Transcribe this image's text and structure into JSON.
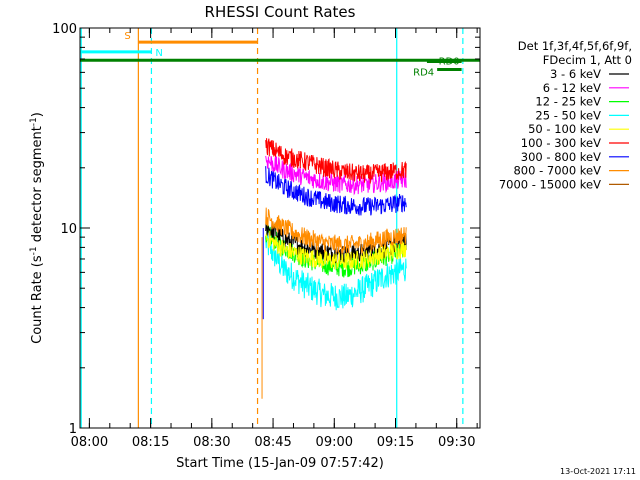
{
  "chart_data": {
    "type": "line",
    "title": "RHESSI Count Rates",
    "xlabel": "Start Time (15-Jan-09 07:57:42)",
    "ylabel_main": "Count Rate (s",
    "ylabel_sup1": "-1",
    "ylabel_mid": " detector segment",
    "ylabel_sup2": "-1",
    "ylabel_end": ")",
    "x_start": "07:57:42",
    "xlim_minutes": [
      0,
      98
    ],
    "ylim": [
      1,
      100
    ],
    "y_scale": "log",
    "x_ticks": [
      {
        "label": "08:00",
        "min": 2.3
      },
      {
        "label": "08:15",
        "min": 17.3
      },
      {
        "label": "08:30",
        "min": 32.3
      },
      {
        "label": "08:45",
        "min": 47.3
      },
      {
        "label": "09:00",
        "min": 62.3
      },
      {
        "label": "09:15",
        "min": 77.3
      },
      {
        "label": "09:30",
        "min": 92.3
      }
    ],
    "y_ticks": [
      {
        "label": "100",
        "value": 100
      },
      {
        "label": "10",
        "value": 10
      },
      {
        "label": "1",
        "value": 1
      }
    ],
    "legend": {
      "header1": "Det 1f,3f,4f,5f,6f,9f,",
      "header2": "FDecim 1, Att 0",
      "position": "right"
    },
    "series": [
      {
        "name": "3 - 6 keV",
        "color": "#000000",
        "x": [
          45.5,
          50,
          55,
          60,
          65,
          70,
          75,
          80
        ],
        "values": [
          10.2,
          8.8,
          8.0,
          7.6,
          7.4,
          7.6,
          8.0,
          8.5
        ]
      },
      {
        "name": "6 - 12 keV",
        "color": "#ff00ff",
        "x": [
          45.5,
          50,
          55,
          60,
          65,
          70,
          75,
          80
        ],
        "values": [
          22,
          19.5,
          18,
          17,
          16.5,
          16.5,
          17,
          17.5
        ]
      },
      {
        "name": "12 - 25 keV",
        "color": "#00ff00",
        "x": [
          45.5,
          50,
          55,
          60,
          65,
          70,
          75,
          80
        ],
        "values": [
          9.5,
          8.0,
          7.0,
          6.5,
          6.3,
          6.6,
          7.2,
          7.8
        ]
      },
      {
        "name": "25 - 50 keV",
        "color": "#00ffff",
        "x": [
          45.5,
          50,
          55,
          60,
          65,
          70,
          75,
          80
        ],
        "values": [
          8.5,
          6.2,
          5.2,
          4.6,
          4.5,
          5.0,
          5.8,
          6.3
        ]
      },
      {
        "name": "50 - 100 keV",
        "color": "#ffff00",
        "x": [
          45.5,
          50,
          55,
          60,
          65,
          70,
          75,
          80
        ],
        "values": [
          9.0,
          7.8,
          7.2,
          6.9,
          6.8,
          7.0,
          7.5,
          8.0
        ]
      },
      {
        "name": "100 - 300 keV",
        "color": "#ff0000",
        "x": [
          45.5,
          50,
          55,
          60,
          65,
          70,
          75,
          80
        ],
        "values": [
          26,
          23,
          21.5,
          20,
          19,
          18.5,
          19,
          19.5
        ]
      },
      {
        "name": "300 - 800 keV",
        "color": "#0000ff",
        "x": [
          45.5,
          50,
          55,
          60,
          65,
          70,
          75,
          80
        ],
        "values": [
          18.5,
          16,
          14.5,
          13.5,
          13,
          12.8,
          13,
          13.5
        ]
      },
      {
        "name": "800 - 7000 keV",
        "color": "#ff8c00",
        "x": [
          45.5,
          50,
          55,
          60,
          65,
          70,
          75,
          80
        ],
        "values": [
          11.5,
          10,
          9.0,
          8.4,
          8.2,
          8.4,
          8.9,
          9.3
        ]
      },
      {
        "name": "7000 - 15000 keV",
        "color": "#b05a00",
        "x": [],
        "values": []
      }
    ],
    "annotations": [
      {
        "label": "S",
        "color": "#ff8c00",
        "x_min": 14.3,
        "x_max": 43.5,
        "y": 85
      },
      {
        "label": "N",
        "color": "#00ffff",
        "x_min": 0,
        "x_max": 17.5,
        "y": 76
      },
      {
        "label": "",
        "color": "#008000",
        "x_min": 0,
        "x_max": 98,
        "y": 69
      },
      {
        "label": "RD0",
        "color": "#008000",
        "x_min": 85,
        "x_max": 93.5,
        "y": 68
      },
      {
        "label": "RD4",
        "color": "#008000",
        "x_min": 87.5,
        "x_max": 93.5,
        "y": 62
      }
    ],
    "vlines": [
      {
        "color": "#ff8c00",
        "x": 14.3,
        "style": "solid"
      },
      {
        "color": "#ff8c00",
        "x": 43.5,
        "style": "dashed"
      },
      {
        "color": "#00ffff",
        "x": 0.3,
        "style": "solid"
      },
      {
        "color": "#00ffff",
        "x": 17.5,
        "style": "dashed"
      },
      {
        "color": "#00ffff",
        "x": 77.6,
        "style": "solid"
      },
      {
        "color": "#00ffff",
        "x": 93.8,
        "style": "dashed"
      }
    ],
    "grid": false,
    "timestamp": "13-Oct-2021 17:11"
  }
}
